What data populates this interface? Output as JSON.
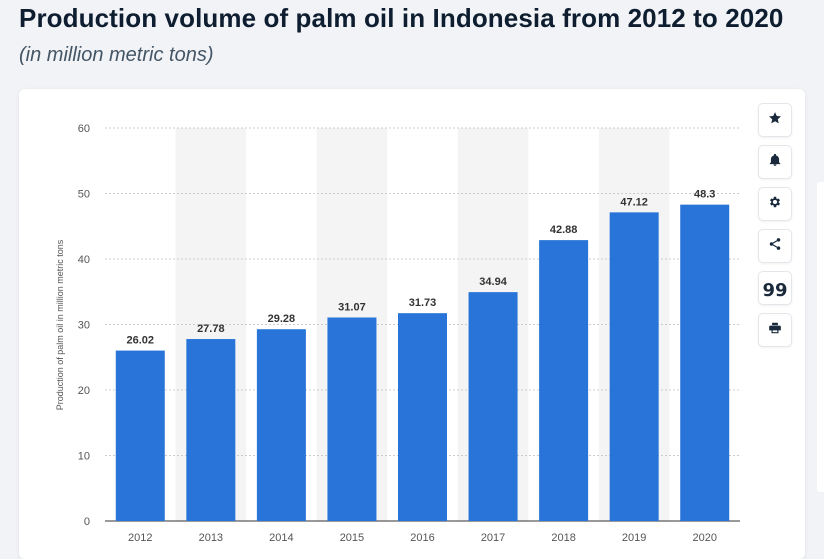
{
  "header": {
    "title": "Production volume of palm oil in Indonesia from 2012 to 2020",
    "subtitle": "(in million metric tons)"
  },
  "toolbar": {
    "buttons": [
      {
        "icon": "star-icon"
      },
      {
        "icon": "bell-icon"
      },
      {
        "icon": "gear-icon"
      },
      {
        "icon": "share-icon"
      },
      {
        "icon": "quote-icon",
        "glyph": "99"
      },
      {
        "icon": "print-icon"
      }
    ]
  },
  "colors": {
    "bar": "#2874d8",
    "band": "#f4f4f5",
    "grid": "#c8ccd2",
    "axis_text": "#555555",
    "label_text": "#333333"
  },
  "chart_data": {
    "type": "bar",
    "title": "",
    "ylabel": "Production of palm oil in million metric tons",
    "xlabel": "",
    "categories": [
      "2012",
      "2013",
      "2014",
      "2015",
      "2016",
      "2017",
      "2018",
      "2019",
      "2020"
    ],
    "values": [
      26.02,
      27.78,
      29.28,
      31.07,
      31.73,
      34.94,
      42.88,
      47.12,
      48.3
    ],
    "value_labels": [
      "26.02",
      "27.78",
      "29.28",
      "31.07",
      "31.73",
      "34.94",
      "42.88",
      "47.12",
      "48.3"
    ],
    "ylim": [
      0,
      60
    ],
    "yticks": [
      0,
      10,
      20,
      30,
      40,
      50,
      60
    ],
    "grid": true,
    "alternating_bands": true
  }
}
